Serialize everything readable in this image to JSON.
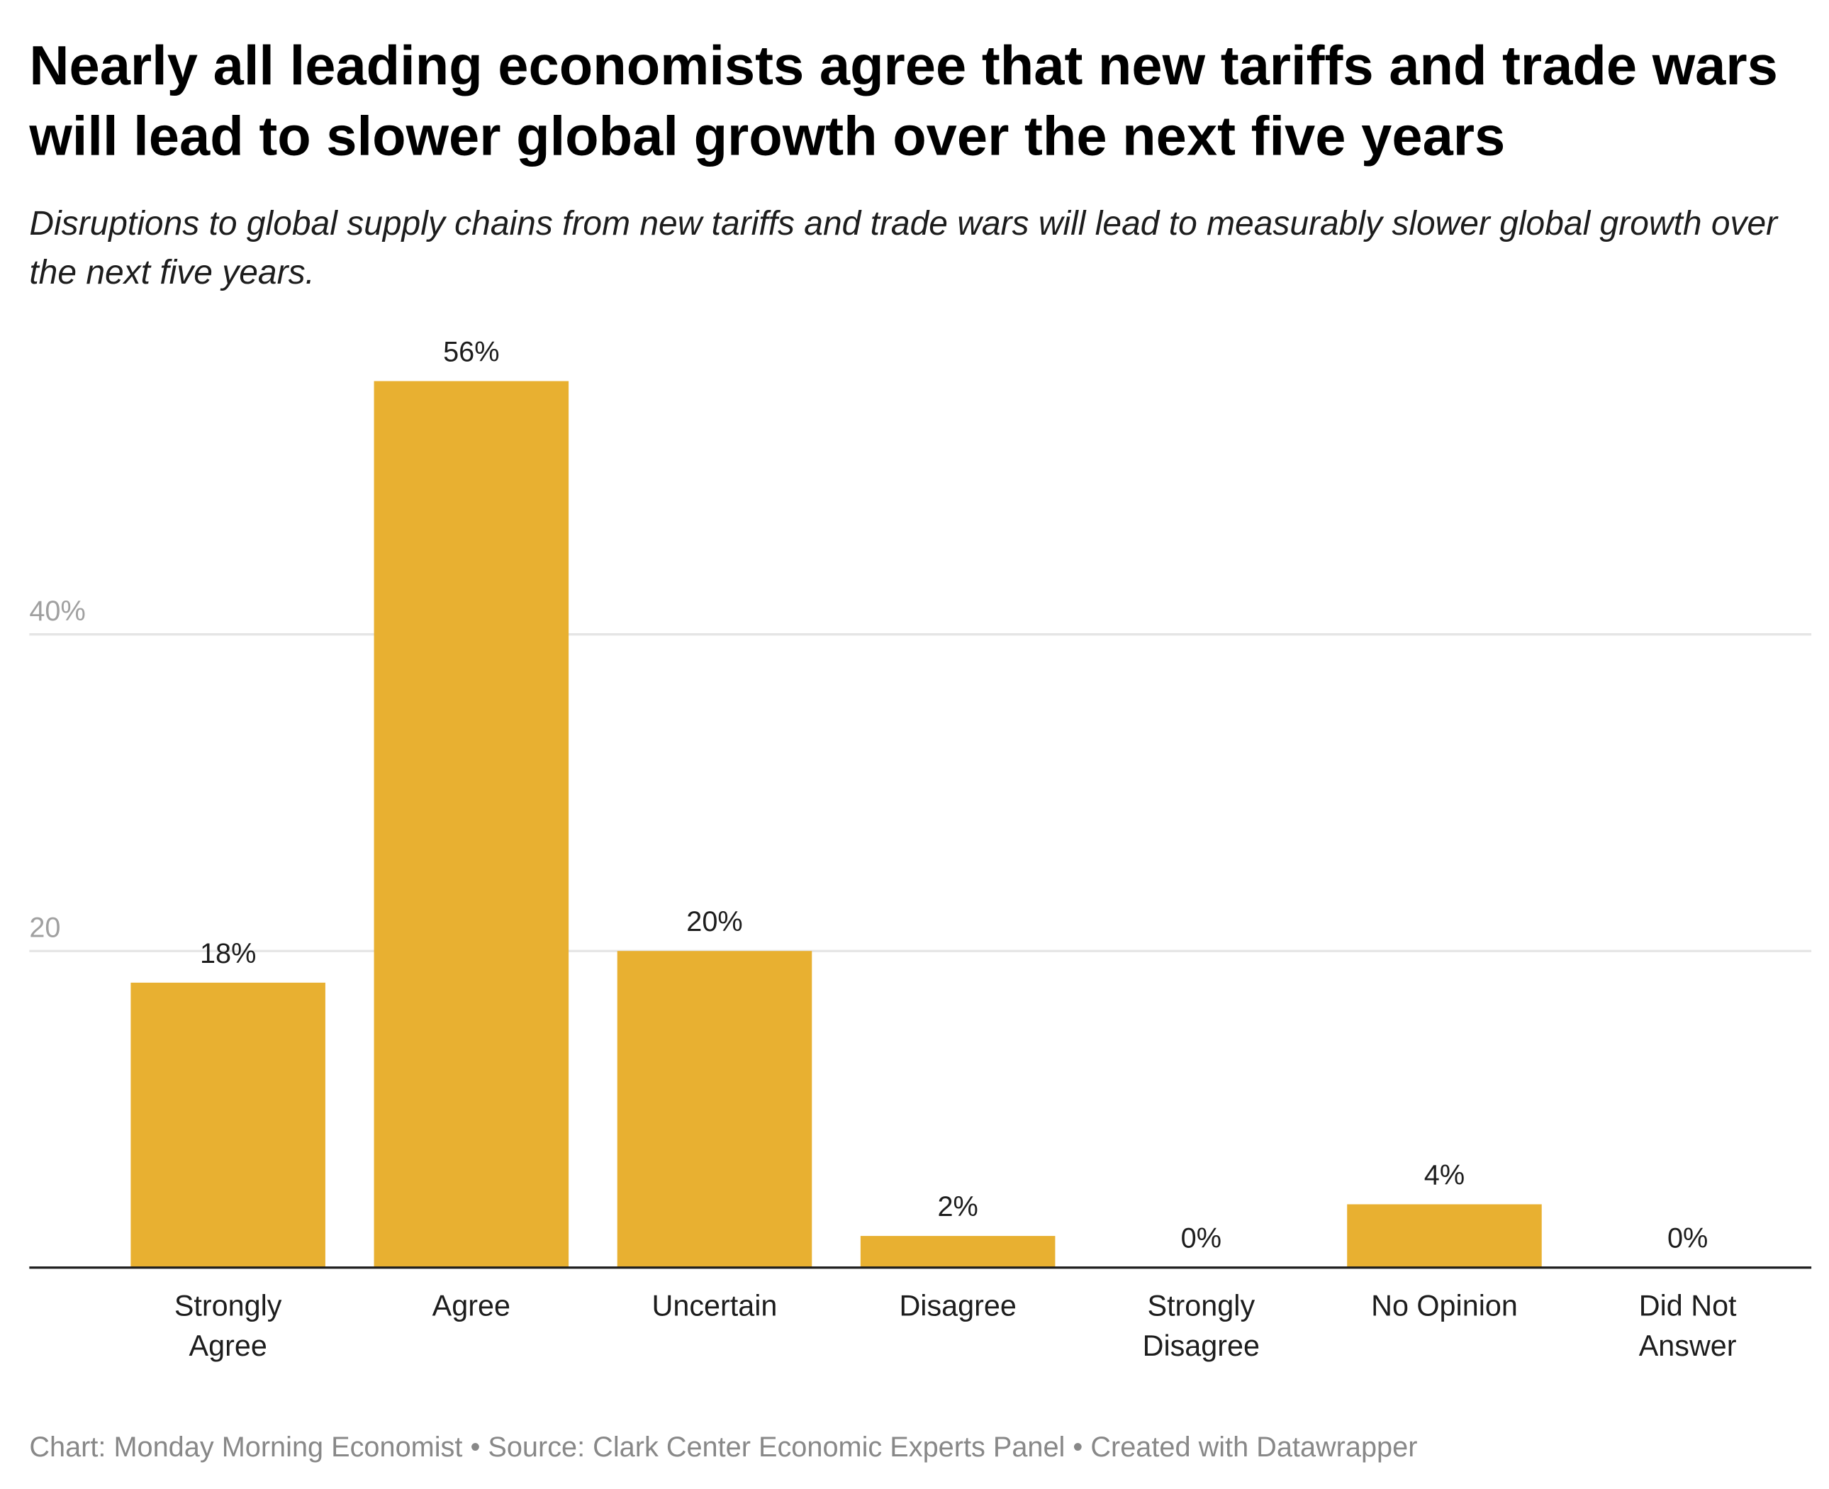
{
  "header": {
    "title": "Nearly all leading economists agree that new tariffs and trade wars will lead to slower global growth over the next five years",
    "subtitle": "Disruptions to global supply chains from new tariffs and trade wars will lead to measurably slower global growth over the next five years."
  },
  "footer": {
    "text": "Chart: Monday Morning Economist • Source: Clark Center Economic Experts Panel • Created with Datawrapper"
  },
  "colors": {
    "bar": "#e8b031",
    "grid": "#e5e5e5",
    "axis": "#1d1d1d"
  },
  "chart_data": {
    "type": "bar",
    "title": "Nearly all leading economists agree that new tariffs and trade wars will lead to slower global growth over the next five years",
    "categories": [
      [
        "Strongly",
        "Agree"
      ],
      [
        "Agree"
      ],
      [
        "Uncertain"
      ],
      [
        "Disagree"
      ],
      [
        "Strongly",
        "Disagree"
      ],
      [
        "No Opinion"
      ],
      [
        "Did Not",
        "Answer"
      ]
    ],
    "values": [
      18,
      56,
      20,
      2,
      0,
      4,
      0
    ],
    "value_labels": [
      "18%",
      "56%",
      "20%",
      "2%",
      "0%",
      "4%",
      "0%"
    ],
    "yticks": [
      {
        "value": 20,
        "label": "20"
      },
      {
        "value": 40,
        "label": "40%"
      }
    ],
    "ylim": [
      0,
      60
    ],
    "xlabel": "",
    "ylabel": "",
    "grid": true
  }
}
